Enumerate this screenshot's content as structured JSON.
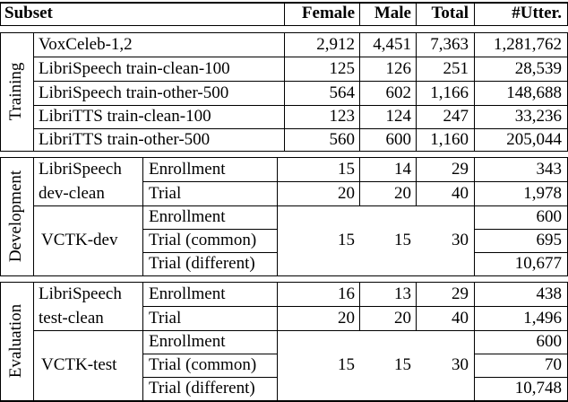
{
  "header": {
    "subset": "Subset",
    "female": "Female",
    "male": "Male",
    "total": "Total",
    "utter": "#Utter."
  },
  "training": {
    "label": "Training",
    "rows": [
      {
        "name": "VoxCeleb-1,2",
        "female": "2,912",
        "male": "4,451",
        "total": "7,363",
        "utter": "1,281,762"
      },
      {
        "name": "LibriSpeech train-clean-100",
        "female": "125",
        "male": "126",
        "total": "251",
        "utter": "28,539"
      },
      {
        "name": "LibriSpeech train-other-500",
        "female": "564",
        "male": "602",
        "total": "1,166",
        "utter": "148,688"
      },
      {
        "name": "LibriTTS train-clean-100",
        "female": "123",
        "male": "124",
        "total": "247",
        "utter": "33,236"
      },
      {
        "name": "LibriTTS train-other-500",
        "female": "560",
        "male": "600",
        "total": "1,160",
        "utter": "205,044"
      }
    ]
  },
  "development": {
    "label": "Development",
    "librispeech": {
      "name_line1": "LibriSpeech",
      "name_line2": "dev-clean",
      "enrollment": {
        "label": "Enrollment",
        "female": "15",
        "male": "14",
        "total": "29",
        "utter": "343"
      },
      "trial": {
        "label": "Trial",
        "female": "20",
        "male": "20",
        "total": "40",
        "utter": "1,978"
      }
    },
    "vctk": {
      "name": "VCTK-dev",
      "female": "15",
      "male": "15",
      "total": "30",
      "enrollment": {
        "label": "Enrollment",
        "utter": "600"
      },
      "trial_common": {
        "label": "Trial (common)",
        "utter": "695"
      },
      "trial_different": {
        "label": "Trial (different)",
        "utter": "10,677"
      }
    }
  },
  "evaluation": {
    "label": "Evaluation",
    "librispeech": {
      "name_line1": "LibriSpeech",
      "name_line2": "test-clean",
      "enrollment": {
        "label": "Enrollment",
        "female": "16",
        "male": "13",
        "total": "29",
        "utter": "438"
      },
      "trial": {
        "label": "Trial",
        "female": "20",
        "male": "20",
        "total": "40",
        "utter": "1,496"
      }
    },
    "vctk": {
      "name": "VCTK-test",
      "female": "15",
      "male": "15",
      "total": "30",
      "enrollment": {
        "label": "Enrollment",
        "utter": "600"
      },
      "trial_common": {
        "label": "Trial (common)",
        "utter": "70"
      },
      "trial_different": {
        "label": "Trial (different)",
        "utter": "10,748"
      }
    }
  }
}
